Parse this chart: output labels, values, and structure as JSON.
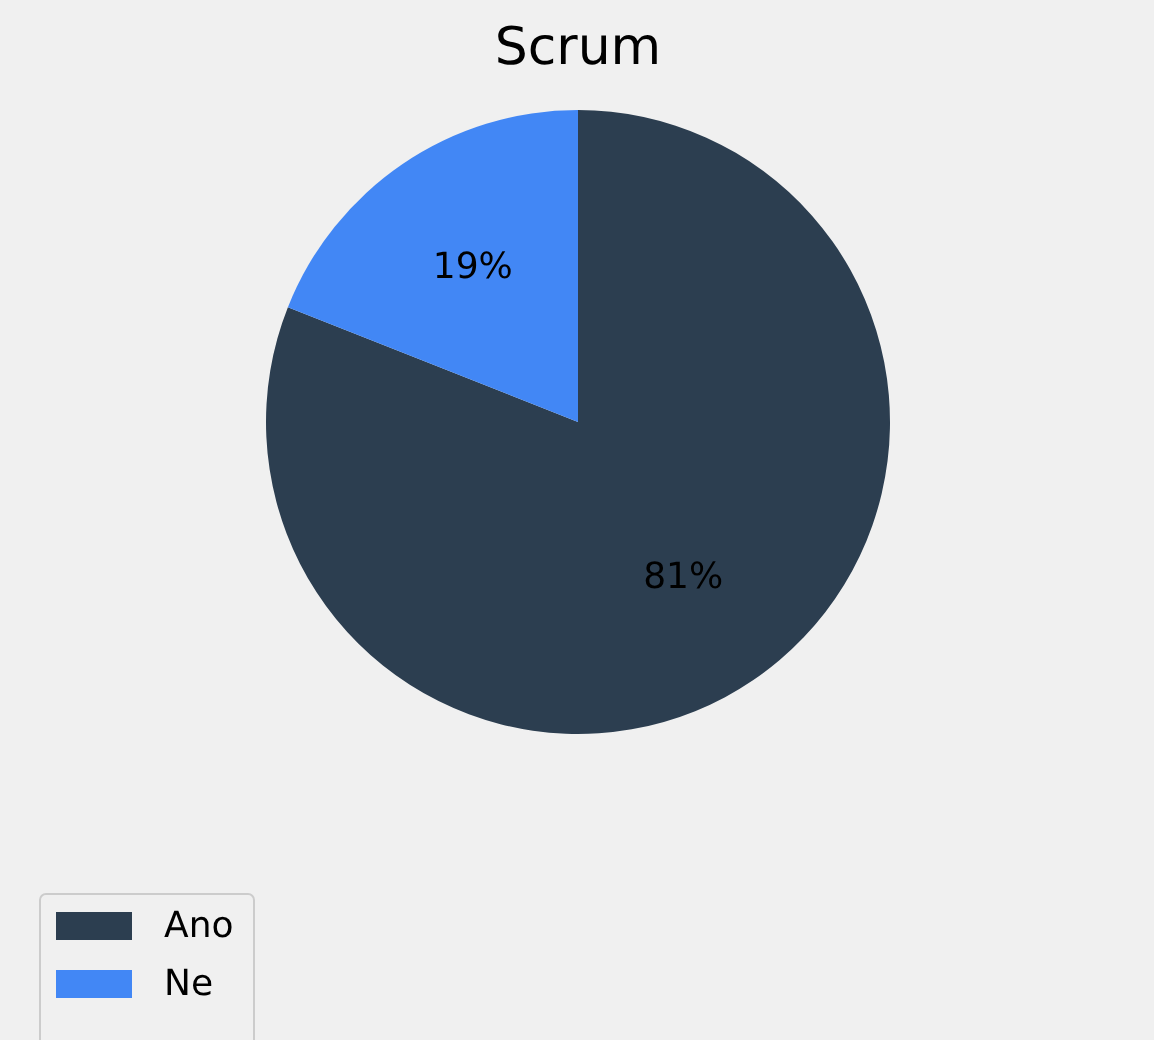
{
  "chart_data": {
    "type": "pie",
    "title": "Scrum",
    "categories": [
      "Ano",
      "Ne"
    ],
    "values": [
      81,
      19
    ],
    "colors": [
      "#2c3e50",
      "#4287f5"
    ],
    "value_labels": [
      "81%",
      "19%"
    ],
    "legend": "bottom left"
  }
}
